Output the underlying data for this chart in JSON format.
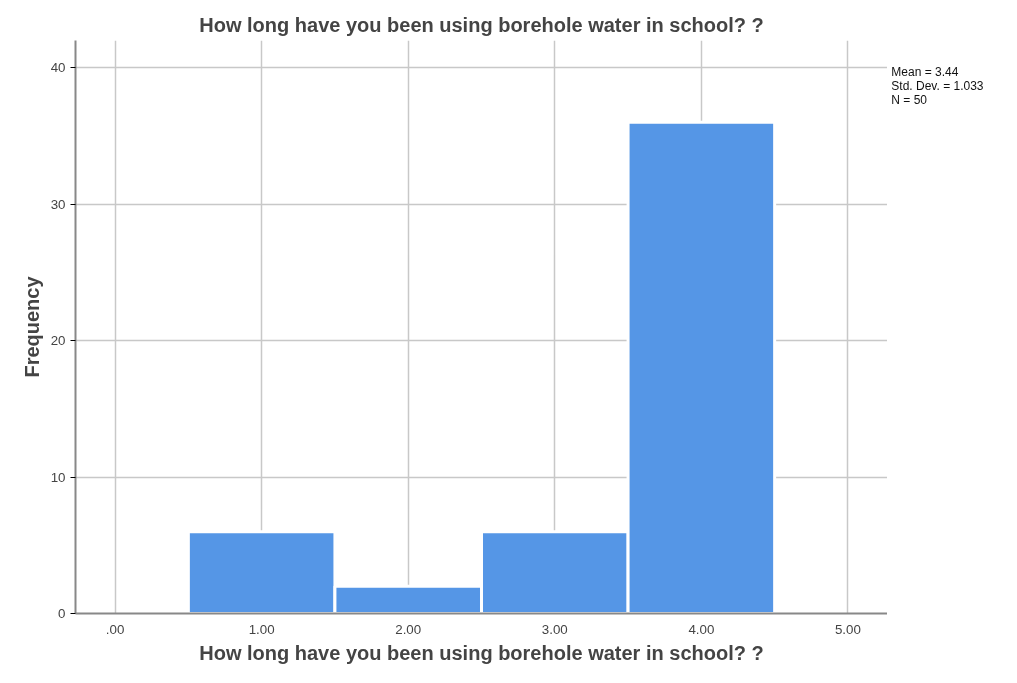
{
  "chart_data": {
    "type": "histogram",
    "title": "How long have you been using borehole water in school? ?",
    "xlabel": "How long have you been using borehole water in school? ?",
    "ylabel": "Frequency",
    "bins": [
      0.5,
      1.5,
      2.5,
      3.5,
      4.5
    ],
    "values": [
      6,
      2,
      6,
      36
    ],
    "color": "#5596e6",
    "xlim": [
      -0.27,
      5.27
    ],
    "ylim": [
      0,
      42
    ],
    "xticks": [
      {
        "value": 0,
        "label": ".00"
      },
      {
        "value": 1,
        "label": "1.00"
      },
      {
        "value": 2,
        "label": "2.00"
      },
      {
        "value": 3,
        "label": "3.00"
      },
      {
        "value": 4,
        "label": "4.00"
      },
      {
        "value": 5,
        "label": "5.00"
      }
    ],
    "yticks": [
      0,
      10,
      20,
      30,
      40
    ],
    "grid": true,
    "annotations": [
      "Mean = 3.44",
      "Std. Dev. = 1.033",
      "N = 50"
    ]
  }
}
